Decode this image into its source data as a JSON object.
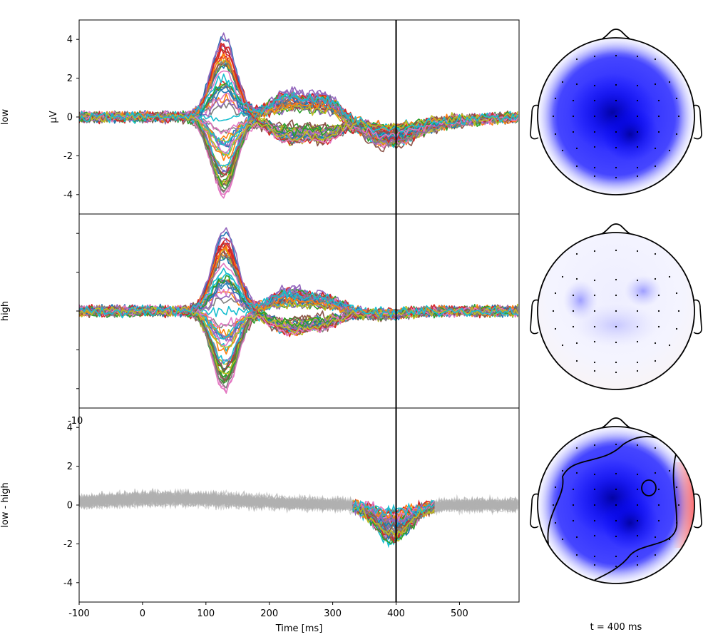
{
  "chart_data": {
    "type": "line",
    "xlabel": "Time [ms]",
    "ylabel": "µV",
    "x_ticks": [
      "-100",
      "0",
      "100",
      "200",
      "300",
      "400",
      "500"
    ],
    "x_tick_values": [
      -100,
      0,
      100,
      200,
      300,
      400,
      500
    ],
    "xlim": [
      -100,
      594
    ],
    "y_ticks": [
      "4",
      "2",
      "0",
      "-2",
      "-4"
    ],
    "y_tick_values": [
      4,
      2,
      0,
      -2,
      -4
    ],
    "ylim": [
      -5,
      5
    ],
    "cursor_time": 400,
    "cursor_label": "t = 400 ms",
    "clipped_tick_label": "-10",
    "n_channels": 60,
    "rows": [
      {
        "label": "low",
        "show_yticks": true,
        "show_ylabel": true
      },
      {
        "label": "high",
        "show_yticks": false,
        "show_ylabel": false
      },
      {
        "label": "low - high",
        "show_yticks": true,
        "show_ylabel": false
      }
    ],
    "waveform_shape": {
      "time_ms": [
        -100,
        0,
        60,
        90,
        130,
        170,
        200,
        240,
        280,
        300,
        330,
        370,
        400,
        440,
        480,
        594
      ],
      "low_peak_range_uV": [
        -4.1,
        4.3
      ],
      "high_peak_range_uV": [
        -4.2,
        4.3
      ],
      "difference_window_ms": [
        330,
        460
      ],
      "difference_min_uV": -3.1
    },
    "topomaps": [
      {
        "condition": "low",
        "dominant": "negative"
      },
      {
        "condition": "high",
        "dominant": "neutral",
        "frontal_positive": true
      },
      {
        "condition": "low - high",
        "dominant": "negative",
        "contour": true
      }
    ],
    "colors": {
      "negative": "#0000ff",
      "positive": "#ff0000",
      "nonsignificant_trace": "#b0b0b0",
      "series_palette": [
        "#1f77b4",
        "#ff7f0e",
        "#2ca02c",
        "#d62728",
        "#9467bd",
        "#8c564b",
        "#e377c2",
        "#7f7f7f",
        "#bcbd22",
        "#17becf"
      ]
    }
  }
}
